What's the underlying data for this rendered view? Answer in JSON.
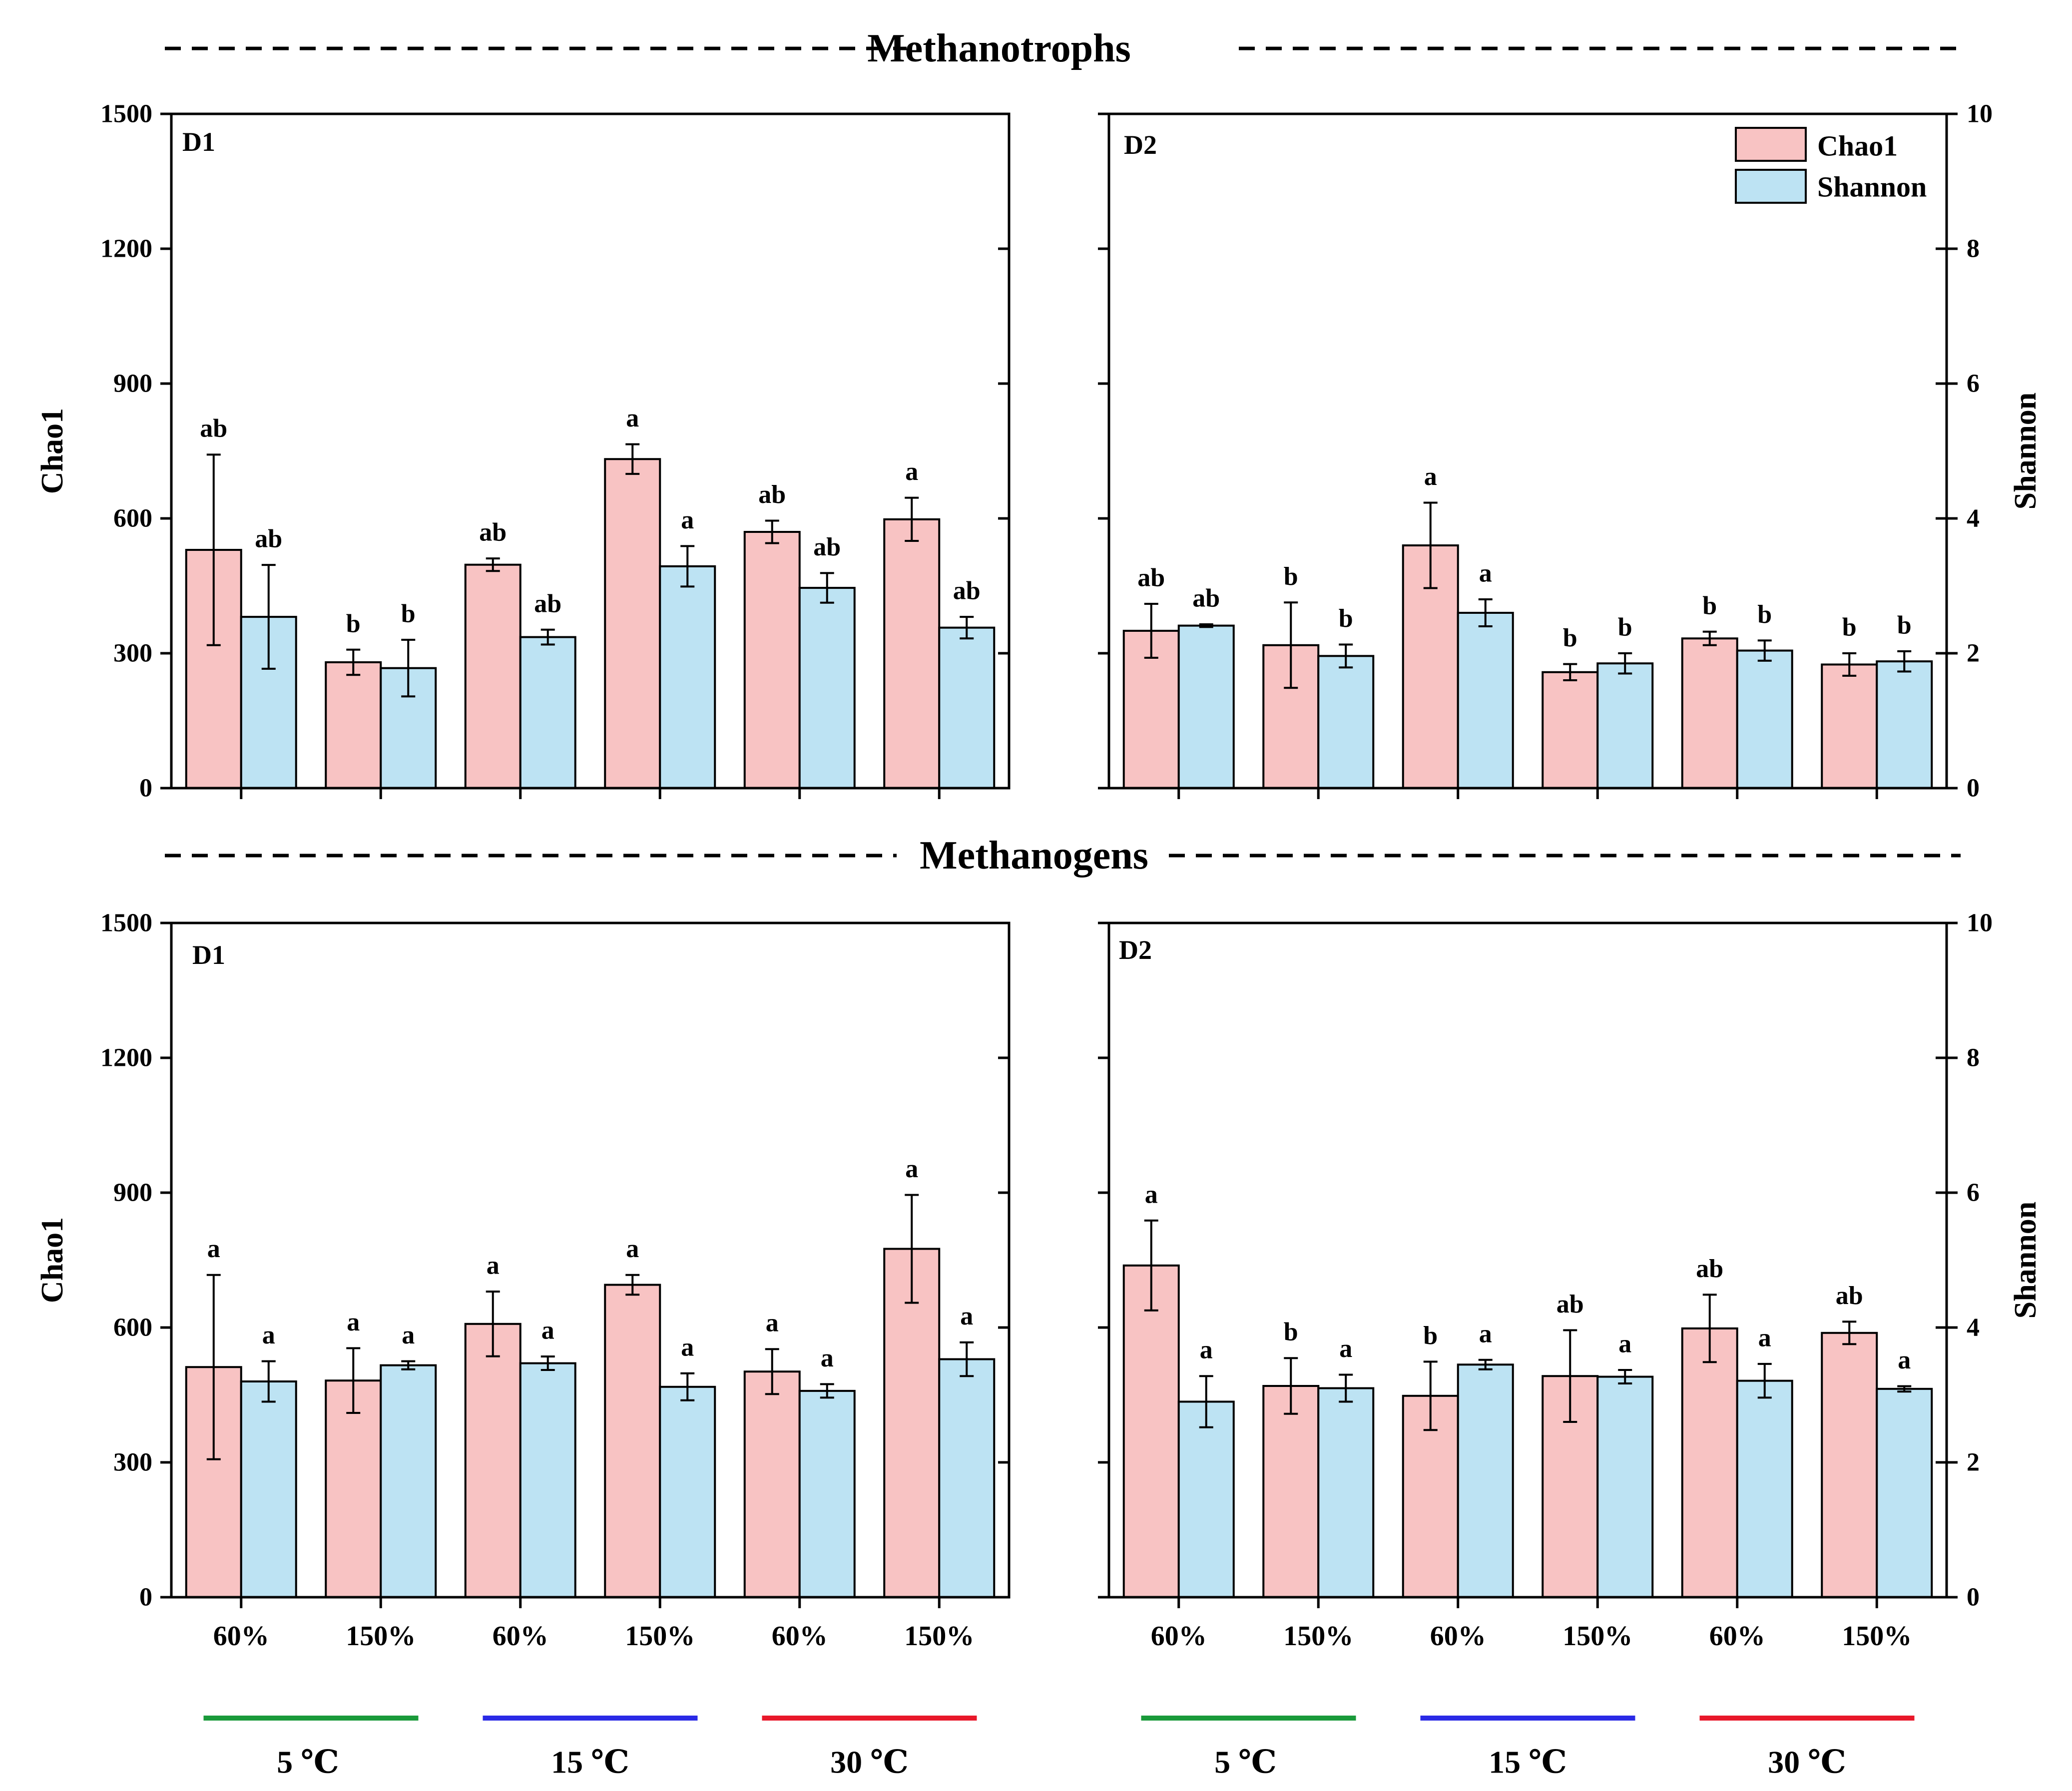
{
  "colors": {
    "chao1": "#f8c3c3",
    "shannon": "#bde3f3",
    "t5": "#1a9a3a",
    "t15": "#2a2ae6",
    "t30": "#e8182a"
  },
  "legend": {
    "chao1": "Chao1",
    "shannon": "Shannon"
  },
  "sections": [
    {
      "title": "Methanotrophs"
    },
    {
      "title": "Methanogens"
    }
  ],
  "axes": {
    "left_label": "Chao1",
    "right_label": "Shannon",
    "left_ticks": [
      "0",
      "300",
      "600",
      "900",
      "1200",
      "1500"
    ],
    "right_ticks": [
      "0",
      "2",
      "4",
      "6",
      "8",
      "10"
    ]
  },
  "temperatures": [
    "5 ℃",
    "15 ℃",
    "30 ℃"
  ],
  "chart_data": [
    {
      "type": "bar",
      "section": "Methanotrophs",
      "panel": "D1",
      "categories": [
        "60%",
        "150%",
        "60%",
        "150%",
        "60%",
        "150%"
      ],
      "ylim": [
        0,
        1500
      ],
      "y2lim": [
        0,
        10
      ],
      "series": [
        {
          "name": "Chao1",
          "axis": "left",
          "values": [
            530,
            280,
            497,
            732,
            570,
            598
          ],
          "errors": [
            212,
            28,
            14,
            33,
            25,
            48
          ],
          "letters": [
            "ab",
            "b",
            "ab",
            "a",
            "ab",
            "a"
          ]
        },
        {
          "name": "Shannon",
          "axis": "right",
          "values": [
            2.54,
            1.78,
            2.24,
            3.29,
            2.97,
            2.38
          ],
          "errors": [
            0.77,
            0.42,
            0.11,
            0.3,
            0.22,
            0.16
          ],
          "letters": [
            "ab",
            "b",
            "ab",
            "a",
            "ab",
            "ab"
          ]
        }
      ]
    },
    {
      "type": "bar",
      "section": "Methanotrophs",
      "panel": "D2",
      "categories": [
        "60%",
        "150%",
        "60%",
        "150%",
        "60%",
        "150%"
      ],
      "ylim": [
        0,
        1500
      ],
      "y2lim": [
        0,
        10
      ],
      "series": [
        {
          "name": "Chao1",
          "axis": "left",
          "values": [
            350,
            318,
            540,
            258,
            333,
            275
          ],
          "errors": [
            60,
            95,
            95,
            18,
            15,
            25
          ],
          "letters": [
            "ab",
            "b",
            "a",
            "b",
            "b",
            "b"
          ]
        },
        {
          "name": "Shannon",
          "axis": "right",
          "values": [
            2.41,
            1.96,
            2.6,
            1.85,
            2.04,
            1.88
          ],
          "errors": [
            0.02,
            0.17,
            0.2,
            0.15,
            0.15,
            0.15
          ],
          "letters": [
            "ab",
            "b",
            "a",
            "b",
            "b",
            "b"
          ]
        }
      ]
    },
    {
      "type": "bar",
      "section": "Methanogens",
      "panel": "D1",
      "categories": [
        "60%",
        "150%",
        "60%",
        "150%",
        "60%",
        "150%"
      ],
      "ylim": [
        0,
        1500
      ],
      "y2lim": [
        0,
        10
      ],
      "series": [
        {
          "name": "Chao1",
          "axis": "left",
          "values": [
            512,
            482,
            608,
            695,
            502,
            775
          ],
          "errors": [
            205,
            72,
            72,
            22,
            50,
            120
          ],
          "letters": [
            "a",
            "a",
            "a",
            "a",
            "a",
            "a"
          ]
        },
        {
          "name": "Shannon",
          "axis": "right",
          "values": [
            3.2,
            3.44,
            3.47,
            3.12,
            3.06,
            3.53
          ],
          "errors": [
            0.3,
            0.06,
            0.1,
            0.2,
            0.1,
            0.25
          ],
          "letters": [
            "a",
            "a",
            "a",
            "a",
            "a",
            "a"
          ]
        }
      ]
    },
    {
      "type": "bar",
      "section": "Methanogens",
      "panel": "D2",
      "categories": [
        "60%",
        "150%",
        "60%",
        "150%",
        "60%",
        "150%"
      ],
      "ylim": [
        0,
        1500
      ],
      "y2lim": [
        0,
        10
      ],
      "series": [
        {
          "name": "Chao1",
          "axis": "left",
          "values": [
            738,
            470,
            448,
            492,
            598,
            588
          ],
          "errors": [
            100,
            62,
            76,
            102,
            75,
            25
          ],
          "letters": [
            "a",
            "b",
            "b",
            "ab",
            "ab",
            "ab"
          ]
        },
        {
          "name": "Shannon",
          "axis": "right",
          "values": [
            2.9,
            3.1,
            3.45,
            3.27,
            3.21,
            3.09
          ],
          "errors": [
            0.38,
            0.2,
            0.07,
            0.1,
            0.25,
            0.04
          ],
          "letters": [
            "a",
            "a",
            "a",
            "a",
            "a",
            "a"
          ]
        }
      ]
    }
  ]
}
